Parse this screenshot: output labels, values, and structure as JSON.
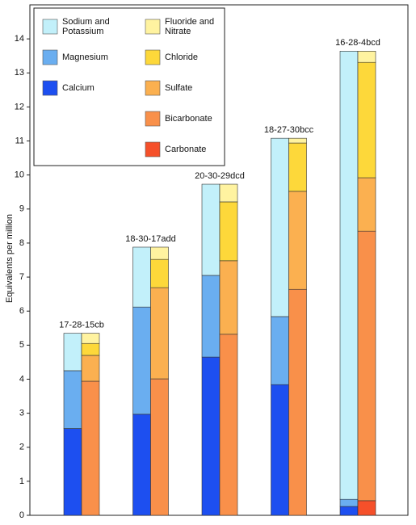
{
  "chart_data": {
    "type": "stacked_pair_bar",
    "y_label": "Equivalents per million",
    "categories": [
      "17-28-15cb",
      "18-30-17add",
      "20-30-29dcd",
      "18-27-30bcc",
      "16-28-4bcd"
    ],
    "ylim": [
      0,
      15
    ],
    "yticks": [
      0,
      1,
      2,
      3,
      4,
      5,
      6,
      7,
      8,
      9,
      10,
      11,
      12,
      13,
      14
    ],
    "stacks": [
      [
        {
          "name": "Calcium",
          "color": "#1d4ff0",
          "values": [
            2.55,
            2.97,
            4.65,
            3.84,
            0.26
          ]
        },
        {
          "name": "Magnesium",
          "color": "#6aaef0",
          "values": [
            1.7,
            3.15,
            2.4,
            2.0,
            0.21
          ]
        },
        {
          "name": "Sodium and Potassium",
          "color": "#c2f0fa",
          "values": [
            1.1,
            1.76,
            2.68,
            5.24,
            13.17
          ]
        }
      ],
      [
        {
          "name": "Carbonate",
          "color": "#f5502a",
          "values": [
            0,
            0,
            0,
            0,
            0.43
          ]
        },
        {
          "name": "Bicarbonate",
          "color": "#f9904a",
          "values": [
            3.94,
            4.01,
            5.32,
            6.64,
            7.92
          ]
        },
        {
          "name": "Sulfate",
          "color": "#fbb050",
          "values": [
            0.76,
            2.68,
            2.16,
            2.88,
            1.57
          ]
        },
        {
          "name": "Chloride",
          "color": "#fdd83a",
          "values": [
            0.35,
            0.83,
            1.73,
            1.42,
            3.39
          ]
        },
        {
          "name": "Fluoride and Nitrate",
          "color": "#fff3a0",
          "values": [
            0.3,
            0.36,
            0.52,
            0.14,
            0.33
          ]
        }
      ]
    ]
  }
}
